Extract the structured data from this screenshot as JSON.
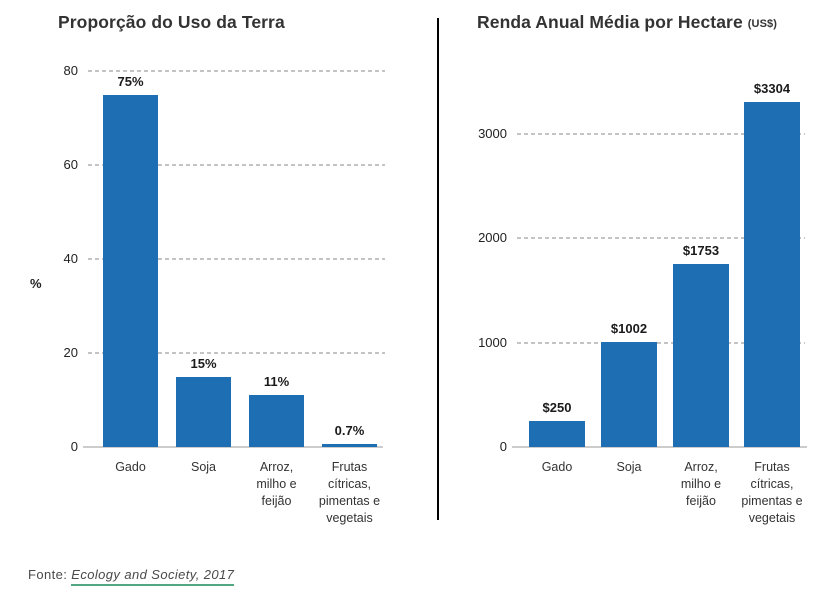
{
  "colors": {
    "bar": "#1d6eb2",
    "title_text": "#333333",
    "grid_line": "#c4c4c4",
    "axis_line": "#cccccc",
    "source_underline": "#53a783",
    "divider": "#000000"
  },
  "footer": {
    "prefix": "Fonte:",
    "link_text": "Ecology and Society, 2017"
  },
  "chart_data": [
    {
      "type": "bar",
      "title": "Proporção do Uso da Terra",
      "ylabel": "%",
      "xlabel": "",
      "categories": [
        "Gado",
        "Soja",
        "Arroz,\nmilho e\nfeijão",
        "Frutas\ncítricas,\npimentas e\nvegetais"
      ],
      "values": [
        75,
        15,
        11,
        0.7
      ],
      "value_labels": [
        "75%",
        "15%",
        "11%",
        "0.7%"
      ],
      "yticks": [
        0,
        20,
        40,
        60,
        80
      ],
      "ylim": [
        0,
        80
      ],
      "grid": "horizontal-dashed",
      "legend": "none"
    },
    {
      "type": "bar",
      "title": "Renda Anual Média por Hectare",
      "title_suffix": "(US$)",
      "ylabel": "",
      "xlabel": "",
      "categories": [
        "Gado",
        "Soja",
        "Arroz,\nmilho e\nfeijão",
        "Frutas\ncítricas,\npimentas e\nvegetais"
      ],
      "values": [
        250,
        1002,
        1753,
        3304
      ],
      "value_labels": [
        "$250",
        "$1002",
        "$1753",
        "$3304"
      ],
      "yticks": [
        0,
        1000,
        2000,
        3000
      ],
      "ylim": [
        0,
        3450
      ],
      "grid": "horizontal-dashed",
      "legend": "none"
    }
  ]
}
